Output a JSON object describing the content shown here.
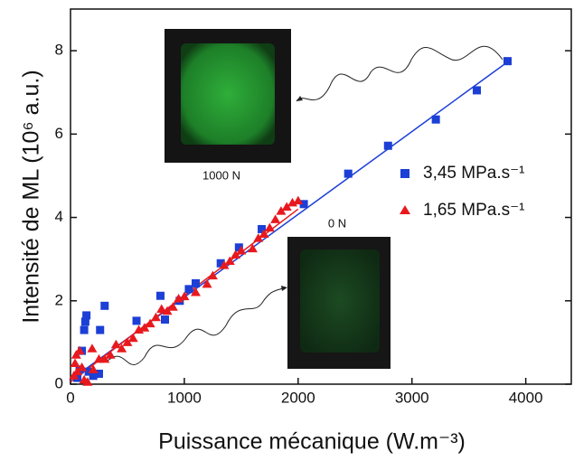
{
  "chart_data": {
    "type": "scatter",
    "x_label": "Puissance mécanique (W.m⁻³)",
    "y_label": "Intensité de ML (10⁶ a.u.)",
    "xlim": [
      0,
      4400
    ],
    "ylim": [
      0,
      9
    ],
    "xticks": [
      0,
      1000,
      2000,
      3000,
      4000
    ],
    "yticks": [
      0,
      2,
      4,
      6,
      8
    ],
    "legend": "right",
    "annotations": [
      "1000 N",
      "0 N"
    ],
    "series": [
      {
        "name": "3,45 MPa.s⁻¹",
        "color": "#1c3fd6",
        "marker": "square",
        "x": [
          3840,
          3570,
          3210,
          2790,
          2440,
          2050,
          1680,
          1480,
          1320,
          1100,
          1040,
          960,
          790,
          830,
          580,
          300,
          260,
          140,
          130,
          120,
          100,
          80,
          160,
          200,
          60,
          250
        ],
        "values": [
          7.75,
          7.05,
          6.35,
          5.72,
          5.05,
          4.32,
          3.72,
          3.28,
          2.9,
          2.42,
          2.28,
          2.0,
          2.12,
          1.55,
          1.52,
          1.88,
          1.3,
          1.65,
          1.5,
          1.3,
          0.8,
          0.35,
          0.3,
          0.2,
          0.15,
          0.25
        ],
        "fit_x": [
          0,
          3850
        ],
        "fit_y": [
          0.1,
          7.75
        ]
      },
      {
        "name": "1,65 MPa.s⁻¹",
        "color": "#e8191e",
        "marker": "triangle",
        "x": [
          30,
          40,
          50,
          60,
          80,
          100,
          120,
          150,
          200,
          250,
          300,
          350,
          400,
          450,
          500,
          550,
          600,
          650,
          700,
          750,
          800,
          850,
          900,
          950,
          1000,
          1100,
          1200,
          1250,
          1350,
          1400,
          1450,
          1500,
          1600,
          1650,
          1700,
          1750,
          1800,
          1850,
          1900,
          1950,
          2000,
          190
        ],
        "values": [
          0.2,
          0.5,
          0.7,
          0.3,
          0.8,
          0.4,
          0.1,
          0.05,
          0.35,
          0.6,
          0.6,
          0.7,
          0.95,
          0.85,
          1.0,
          1.1,
          1.3,
          1.35,
          1.45,
          1.6,
          1.8,
          1.75,
          1.85,
          2.05,
          2.1,
          2.2,
          2.4,
          2.6,
          2.85,
          2.95,
          3.1,
          3.2,
          3.25,
          3.5,
          3.6,
          3.75,
          3.95,
          4.15,
          4.25,
          4.35,
          4.4,
          0.85
        ],
        "fit_x": [
          0,
          2000
        ],
        "fit_y": [
          0.05,
          4.2
        ]
      }
    ]
  }
}
